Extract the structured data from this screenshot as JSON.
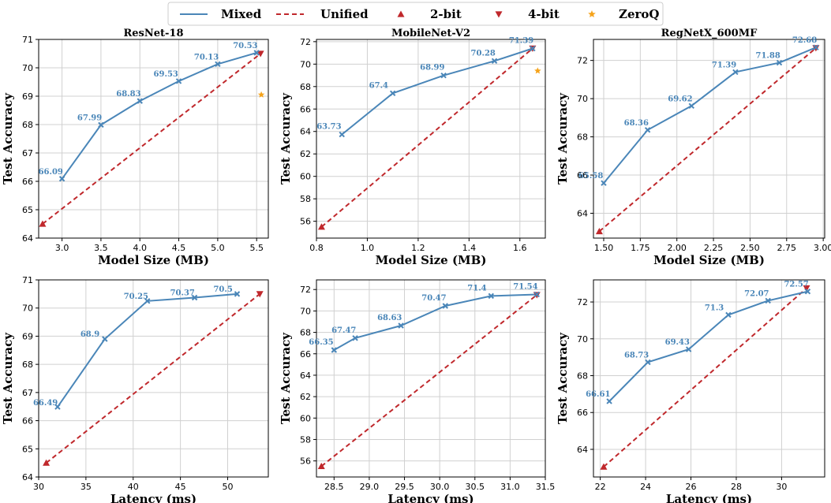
{
  "colors": {
    "mixed": "#4a86b8",
    "unified": "#c0282c",
    "zeroq": "#f5a31b"
  },
  "legend": [
    {
      "label": "Mixed",
      "marker": "line"
    },
    {
      "label": "Unified",
      "marker": "dashed-line"
    },
    {
      "label": "2-bit",
      "marker": "triangle-up"
    },
    {
      "label": "4-bit",
      "marker": "triangle-down"
    },
    {
      "label": "ZeroQ",
      "marker": "star"
    }
  ],
  "chart_data": [
    {
      "type": "line",
      "title": "ResNet-18",
      "xlabel": "Model Size (MB)",
      "ylabel": "Test Accuracy",
      "xlim": [
        2.7,
        5.65
      ],
      "ylim": [
        64,
        71
      ],
      "xticks": [
        3.0,
        3.5,
        4.0,
        4.5,
        5.0,
        5.5
      ],
      "xtick_labels": [
        "3.0",
        "3.5",
        "4.0",
        "4.5",
        "5.0",
        "5.5"
      ],
      "yticks": [
        64,
        65,
        66,
        67,
        68,
        69,
        70,
        71
      ],
      "ytick_labels": [
        "64",
        "65",
        "66",
        "67",
        "68",
        "69",
        "70",
        "71"
      ],
      "mixed": {
        "x": [
          3.0,
          3.5,
          4.0,
          4.5,
          5.0,
          5.5
        ],
        "y": [
          66.09,
          67.99,
          68.83,
          69.53,
          70.13,
          70.53
        ],
        "labels": [
          "66.09",
          "67.99",
          "68.83",
          "69.53",
          "70.13",
          "70.53"
        ]
      },
      "unified": {
        "x": [
          2.75,
          5.55
        ],
        "y": [
          64.5,
          70.5
        ]
      },
      "zeroq": {
        "x": [
          5.56
        ],
        "y": [
          69.05
        ]
      }
    },
    {
      "type": "line",
      "title": "MobileNet-V2",
      "xlabel": "Model Size (MB)",
      "ylabel": "Test Accuracy",
      "xlim": [
        0.8,
        1.7
      ],
      "ylim": [
        54.5,
        72.2
      ],
      "xticks": [
        0.8,
        1.0,
        1.2,
        1.4,
        1.6
      ],
      "xtick_labels": [
        "0.8",
        "1.0",
        "1.2",
        "1.4",
        "1.6"
      ],
      "yticks": [
        56,
        58,
        60,
        62,
        64,
        66,
        68,
        70,
        72
      ],
      "ytick_labels": [
        "56",
        "58",
        "60",
        "62",
        "64",
        "66",
        "68",
        "70",
        "72"
      ],
      "mixed": {
        "x": [
          0.9,
          1.1,
          1.3,
          1.5,
          1.65
        ],
        "y": [
          63.73,
          67.4,
          68.99,
          70.28,
          71.39
        ],
        "labels": [
          "63.73",
          "67.4",
          "68.99",
          "70.28",
          "71.39"
        ]
      },
      "unified": {
        "x": [
          0.82,
          1.65
        ],
        "y": [
          55.5,
          71.4
        ]
      },
      "zeroq": {
        "x": [
          1.67
        ],
        "y": [
          69.4
        ]
      }
    },
    {
      "type": "line",
      "title": "RegNetX_600MF",
      "xlabel": "Model Size (MB)",
      "ylabel": "Test Accuracy",
      "xlim": [
        1.43,
        3.01
      ],
      "ylim": [
        62.7,
        73.1
      ],
      "xticks": [
        1.5,
        1.75,
        2.0,
        2.25,
        2.5,
        2.75,
        3.0
      ],
      "xtick_labels": [
        "1.50",
        "1.75",
        "2.00",
        "2.25",
        "2.50",
        "2.75",
        "3.00"
      ],
      "yticks": [
        64,
        66,
        68,
        70,
        72
      ],
      "ytick_labels": [
        "64",
        "66",
        "68",
        "70",
        "72"
      ],
      "mixed": {
        "x": [
          1.5,
          1.8,
          2.1,
          2.4,
          2.7,
          2.95
        ],
        "y": [
          65.58,
          68.36,
          69.62,
          71.39,
          71.88,
          72.68
        ],
        "labels": [
          "65.58",
          "68.36",
          "69.62",
          "71.39",
          "71.88",
          "72.68"
        ]
      },
      "unified": {
        "x": [
          1.47,
          2.95
        ],
        "y": [
          63.05,
          72.65
        ]
      }
    },
    {
      "type": "line",
      "title": "",
      "xlabel": "Latency (ms)",
      "ylabel": "Test Accuracy",
      "xlim": [
        30,
        54.3
      ],
      "ylim": [
        64,
        71
      ],
      "xticks": [
        30,
        35,
        40,
        45,
        50
      ],
      "xtick_labels": [
        "30",
        "35",
        "40",
        "45",
        "50"
      ],
      "yticks": [
        64,
        65,
        66,
        67,
        68,
        69,
        70,
        71
      ],
      "ytick_labels": [
        "64",
        "65",
        "66",
        "67",
        "68",
        "69",
        "70",
        "71"
      ],
      "mixed": {
        "x": [
          32,
          37,
          41.5,
          46.5,
          51
        ],
        "y": [
          66.49,
          68.9,
          70.25,
          70.37,
          70.5
        ],
        "labels": [
          "66.49",
          "68.9",
          "70.25",
          "70.37",
          "70.5"
        ]
      },
      "unified": {
        "x": [
          30.8,
          53.4
        ],
        "y": [
          64.5,
          70.5
        ]
      }
    },
    {
      "type": "line",
      "title": "",
      "xlabel": "Latency (ms)",
      "ylabel": "Test Accuracy",
      "xlim": [
        28.25,
        31.5
      ],
      "ylim": [
        54.5,
        72.9
      ],
      "xticks": [
        28.5,
        29.0,
        29.5,
        30.0,
        30.5,
        31.0,
        31.5
      ],
      "xtick_labels": [
        "28.5",
        "29.0",
        "29.5",
        "30.0",
        "30.5",
        "31.0",
        "31.5"
      ],
      "yticks": [
        56,
        58,
        60,
        62,
        64,
        66,
        68,
        70,
        72
      ],
      "ytick_labels": [
        "56",
        "58",
        "60",
        "62",
        "64",
        "66",
        "68",
        "70",
        "72"
      ],
      "mixed": {
        "x": [
          28.5,
          28.8,
          29.45,
          30.08,
          30.73,
          31.38
        ],
        "y": [
          66.35,
          67.47,
          68.63,
          70.47,
          71.4,
          71.54
        ],
        "labels": [
          "66.35",
          "67.47",
          "68.63",
          "70.47",
          "71.4",
          "71.54"
        ]
      },
      "unified": {
        "x": [
          28.32,
          31.38
        ],
        "y": [
          55.5,
          71.5
        ]
      }
    },
    {
      "type": "line",
      "title": "",
      "xlabel": "Latency (ms)",
      "ylabel": "Test Accuracy",
      "xlim": [
        21.7,
        31.9
      ],
      "ylim": [
        62.5,
        73.2
      ],
      "xticks": [
        22,
        24,
        26,
        28,
        30
      ],
      "xtick_labels": [
        "22",
        "24",
        "26",
        "28",
        "30"
      ],
      "yticks": [
        64,
        66,
        68,
        70,
        72
      ],
      "ytick_labels": [
        "64",
        "66",
        "68",
        "70",
        "72"
      ],
      "mixed": {
        "x": [
          22.4,
          24.1,
          25.9,
          27.65,
          29.4,
          31.15
        ],
        "y": [
          66.61,
          68.73,
          69.43,
          71.3,
          72.07,
          72.57
        ],
        "labels": [
          "66.61",
          "68.73",
          "69.43",
          "71.3",
          "72.07",
          "72.57"
        ]
      },
      "unified": {
        "x": [
          22.15,
          31.1
        ],
        "y": [
          63.05,
          72.75
        ]
      }
    }
  ]
}
